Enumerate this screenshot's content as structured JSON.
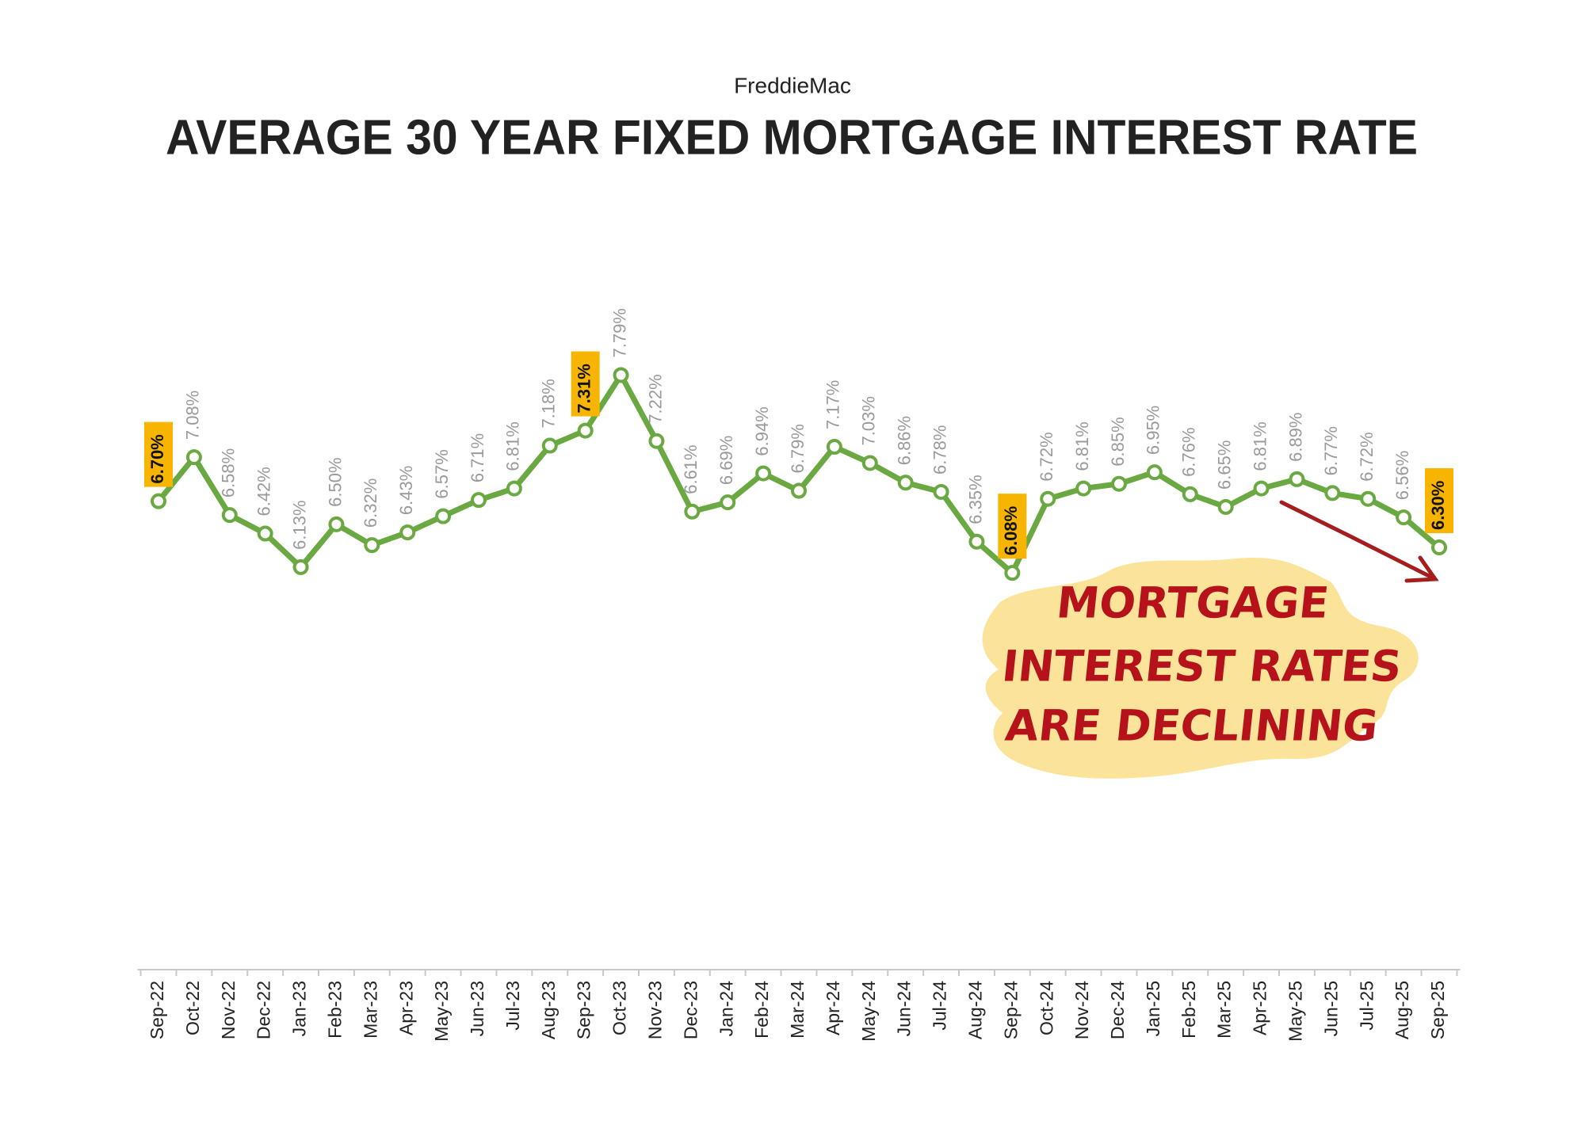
{
  "chart_data": {
    "type": "line",
    "subtitle": "FreddieMac",
    "title": "AVERAGE 30 YEAR FIXED MORTGAGE INTEREST RATE",
    "categories": [
      "Sep-22",
      "Oct-22",
      "Nov-22",
      "Dec-22",
      "Jan-23",
      "Feb-23",
      "Mar-23",
      "Apr-23",
      "May-23",
      "Jun-23",
      "Jul-23",
      "Aug-23",
      "Sep-23",
      "Oct-23",
      "Nov-23",
      "Dec-23",
      "Jan-24",
      "Feb-24",
      "Mar-24",
      "Apr-24",
      "May-24",
      "Jun-24",
      "Jul-24",
      "Aug-24",
      "Sep-24",
      "Oct-24",
      "Nov-24",
      "Dec-24",
      "Jan-25",
      "Feb-25",
      "Mar-25",
      "Apr-25",
      "May-25",
      "Jun-25",
      "Jul-25",
      "Aug-25",
      "Sep-25"
    ],
    "series": [
      {
        "name": "Average 30 year fixed mortgage interest rate",
        "color": "#6aa842",
        "values": [
          6.7,
          7.08,
          6.58,
          6.42,
          6.13,
          6.5,
          6.32,
          6.43,
          6.57,
          6.71,
          6.81,
          7.18,
          7.31,
          7.79,
          7.22,
          6.61,
          6.69,
          6.94,
          6.79,
          7.17,
          7.03,
          6.86,
          6.78,
          6.35,
          6.08,
          6.72,
          6.81,
          6.85,
          6.95,
          6.76,
          6.65,
          6.81,
          6.89,
          6.77,
          6.72,
          6.56,
          6.3
        ],
        "value_labels": [
          "6.70%",
          "7.08%",
          "6.58%",
          "6.42%",
          "6.13%",
          "6.50%",
          "6.32%",
          "6.43%",
          "6.57%",
          "6.71%",
          "6.81%",
          "7.18%",
          "7.31%",
          "7.79%",
          "7.22%",
          "6.61%",
          "6.69%",
          "6.94%",
          "6.79%",
          "7.17%",
          "7.03%",
          "6.86%",
          "6.78%",
          "6.35%",
          "6.08%",
          "6.72%",
          "6.81%",
          "6.85%",
          "6.95%",
          "6.76%",
          "6.65%",
          "6.81%",
          "6.89%",
          "6.77%",
          "6.72%",
          "6.56%",
          "6.30%"
        ]
      }
    ],
    "highlighted": [
      0,
      12,
      24,
      36
    ],
    "highlight_color": "#f7b500",
    "ylim": [
      2.65,
      9.3
    ],
    "annotation": [
      "MORTGAGE",
      "INTEREST RATES",
      "ARE DECLINING"
    ]
  }
}
